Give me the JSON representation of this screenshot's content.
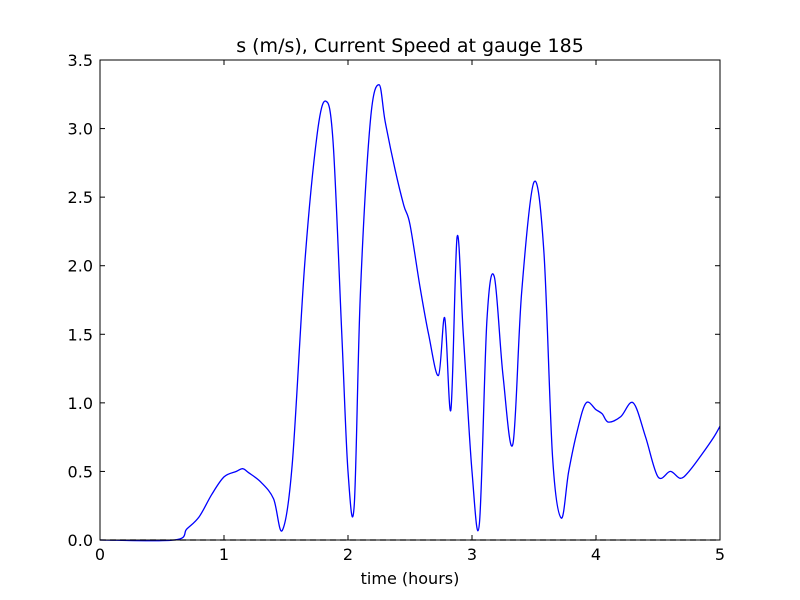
{
  "chart_data": {
    "type": "line",
    "title": "s (m/s), Current Speed at gauge 185",
    "xlabel": "time (hours)",
    "ylabel": "",
    "xlim": [
      0,
      5
    ],
    "ylim": [
      0.0,
      3.5
    ],
    "x_ticks": [
      "0",
      "1",
      "2",
      "3",
      "4",
      "5"
    ],
    "y_ticks": [
      "0.0",
      "0.5",
      "1.0",
      "1.5",
      "2.0",
      "2.5",
      "3.0",
      "3.5"
    ],
    "grid": false,
    "legend": "none",
    "colors": {
      "series": "#0000ff",
      "baseline": "#000000"
    },
    "series": [
      {
        "name": "",
        "x": [
          0,
          0.6,
          0.7,
          0.8,
          0.9,
          1.0,
          1.1,
          1.15,
          1.2,
          1.3,
          1.4,
          1.47,
          1.55,
          1.65,
          1.75,
          1.82,
          1.88,
          1.95,
          2.0,
          2.05,
          2.1,
          2.18,
          2.25,
          2.3,
          2.38,
          2.45,
          2.5,
          2.58,
          2.65,
          2.73,
          2.78,
          2.83,
          2.88,
          2.93,
          3.0,
          3.06,
          3.12,
          3.18,
          3.25,
          3.33,
          3.4,
          3.5,
          3.58,
          3.65,
          3.72,
          3.78,
          3.85,
          3.92,
          4.0,
          4.05,
          4.1,
          4.2,
          4.3,
          4.4,
          4.5,
          4.6,
          4.68,
          4.75,
          4.85,
          4.95,
          5.0
        ],
        "values": [
          0.0,
          0.0,
          0.08,
          0.17,
          0.33,
          0.46,
          0.5,
          0.52,
          0.49,
          0.42,
          0.3,
          0.07,
          0.55,
          2.0,
          2.95,
          3.2,
          2.9,
          1.5,
          0.5,
          0.25,
          1.8,
          3.05,
          3.32,
          3.05,
          2.7,
          2.44,
          2.3,
          1.85,
          1.5,
          1.2,
          1.62,
          0.95,
          2.21,
          1.5,
          0.5,
          0.12,
          1.6,
          1.92,
          1.2,
          0.7,
          1.8,
          2.61,
          2.1,
          0.6,
          0.16,
          0.5,
          0.8,
          1.0,
          0.95,
          0.92,
          0.86,
          0.9,
          1.0,
          0.75,
          0.46,
          0.5,
          0.45,
          0.5,
          0.62,
          0.75,
          0.83
        ]
      },
      {
        "name": "",
        "style": "dashed",
        "x": [
          0,
          5
        ],
        "values": [
          0,
          0
        ]
      }
    ]
  }
}
